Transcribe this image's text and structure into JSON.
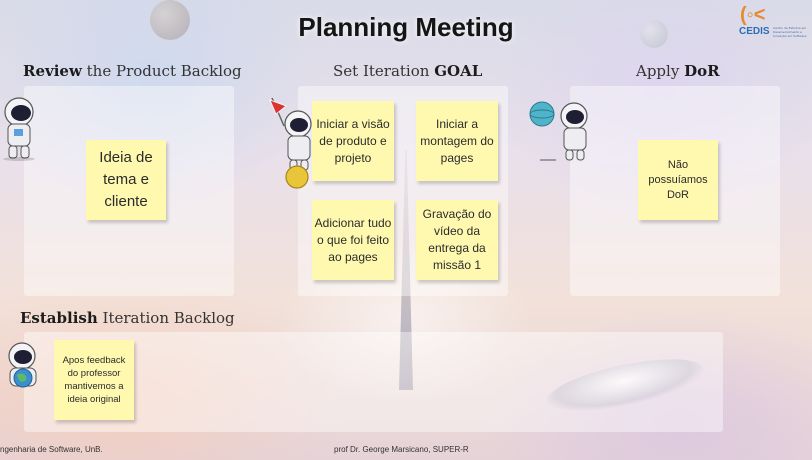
{
  "title": "Planning Meeting",
  "logo": {
    "name": "CEDIS",
    "tagline": "Centro de Estudos em Desenvolvimento e Inovação em Software"
  },
  "sections": {
    "review": {
      "bold": "Review",
      "rest": " the Product Backlog"
    },
    "goal": {
      "rest": "Set Iteration ",
      "bold": "GOAL"
    },
    "dor": {
      "rest": "Apply ",
      "bold": "DoR"
    },
    "backlog": {
      "bold": "Establish",
      "rest": " Iteration Backlog"
    }
  },
  "notes": {
    "review": [
      "Ideia de tema e cliente"
    ],
    "goal": [
      "Iniciar a visão de produto e projeto",
      "Iniciar a montagem do pages",
      "Adicionar tudo o que foi feito ao pages",
      "Gravação do vídeo da entrega da missão 1"
    ],
    "dor": [
      "Não possuíamos DoR"
    ],
    "backlog": [
      "Apos feedback do professor mantivemos a ideia original"
    ]
  },
  "footer": {
    "left": "ngenharia de Software, UnB.",
    "center": "prof Dr. George Marsicano, SUPER-R"
  },
  "colors": {
    "sticky": "#fff9b0",
    "logo_orange": "#e58a2e",
    "logo_blue": "#2c6fb4"
  }
}
